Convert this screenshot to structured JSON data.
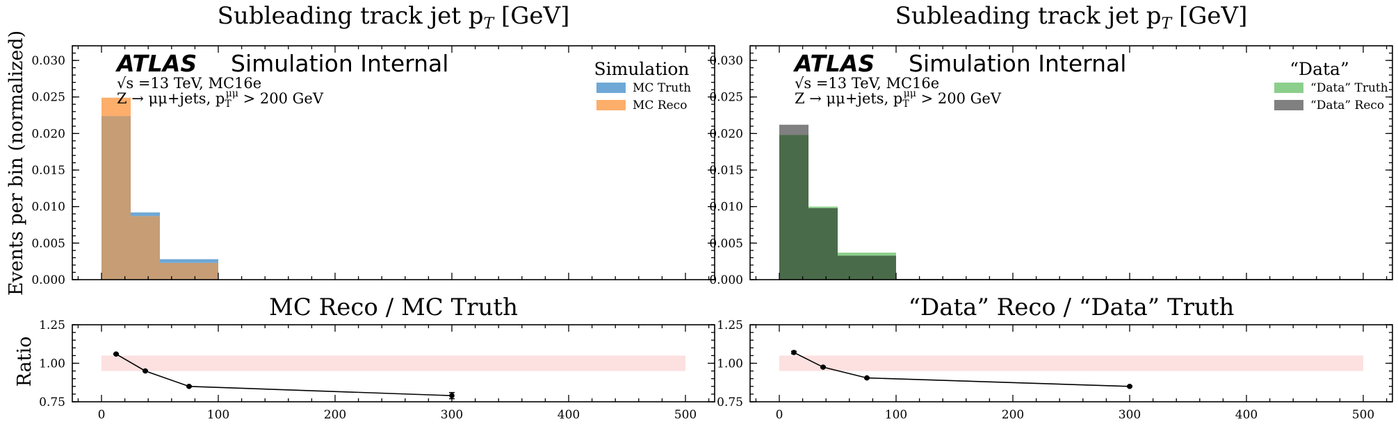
{
  "ylabel_main": "Events per bin (normalized)",
  "ylabel_ratio": "Ratio",
  "atlas": {
    "logo": "ATLAS",
    "label": "Simulation Internal",
    "energy": "√s =13 TeV, MC16e",
    "selection": "Z → μμ+jets, p",
    "selection_sup": "μμ",
    "selection_sub": "T",
    "selection_tail": " > 200 GeV"
  },
  "title_sub": "T",
  "title_unit": " [GeV]",
  "chart_data": [
    {
      "type": "histogram",
      "title": "Subleading track jet p",
      "legend_title": "Simulation",
      "legend_position": "top-right",
      "xlim": [
        -25,
        525
      ],
      "ylim": [
        0,
        0.032
      ],
      "yticks": [
        "0.000",
        "0.005",
        "0.010",
        "0.015",
        "0.020",
        "0.025",
        "0.030"
      ],
      "yticks_values": [
        0,
        0.005,
        0.01,
        0.015,
        0.02,
        0.025,
        0.03
      ],
      "bin_edges": [
        0,
        25,
        50,
        100,
        500
      ],
      "series": [
        {
          "name": "MC Truth",
          "color": "#6fa8d6",
          "values": [
            0.0224,
            0.0092,
            0.0028,
            0.0
          ]
        },
        {
          "name": "MC Reco",
          "color": "#fdae6b",
          "values": [
            0.0249,
            0.0087,
            0.0023,
            0.0
          ]
        }
      ],
      "overlap_color": "#c69d75"
    },
    {
      "type": "histogram",
      "title": "Subleading track jet p",
      "legend_title": "“Data”",
      "legend_position": "top-right",
      "xlim": [
        -25,
        525
      ],
      "ylim": [
        0,
        0.032
      ],
      "yticks": [
        "0.000",
        "0.005",
        "0.010",
        "0.015",
        "0.020",
        "0.025",
        "0.030"
      ],
      "yticks_values": [
        0,
        0.005,
        0.01,
        0.015,
        0.02,
        0.025,
        0.03
      ],
      "bin_edges": [
        0,
        25,
        50,
        100,
        500
      ],
      "series": [
        {
          "name": "“Data” Truth",
          "color": "#8ccf8c",
          "values": [
            0.0198,
            0.01,
            0.0037,
            0.0001
          ]
        },
        {
          "name": "“Data” Reco",
          "color": "#808080",
          "values": [
            0.0212,
            0.0098,
            0.0033,
            0.0001
          ]
        }
      ],
      "overlap_color": "#4a6b4a"
    },
    {
      "type": "line",
      "title": "MC Reco / MC Truth",
      "xlim": [
        -25,
        525
      ],
      "ylim": [
        0.75,
        1.25
      ],
      "xticks": [
        "0",
        "100",
        "200",
        "300",
        "400",
        "500"
      ],
      "xticks_values": [
        0,
        100,
        200,
        300,
        400,
        500
      ],
      "yticks": [
        "0.75",
        "1.00",
        "1.25"
      ],
      "yticks_values": [
        0.75,
        1.0,
        1.25
      ],
      "band": [
        0,
        500,
        0.95,
        1.05
      ],
      "band_color": "#fde0e0",
      "x": [
        12.5,
        37.5,
        75,
        300
      ],
      "y": [
        1.06,
        0.95,
        0.85,
        0.79
      ],
      "yerr": [
        0.004,
        0.004,
        0.004,
        0.02
      ]
    },
    {
      "type": "line",
      "title": "“Data” Reco / “Data” Truth",
      "xlim": [
        -25,
        525
      ],
      "ylim": [
        0.75,
        1.25
      ],
      "xticks": [
        "0",
        "100",
        "200",
        "300",
        "400",
        "500"
      ],
      "xticks_values": [
        0,
        100,
        200,
        300,
        400,
        500
      ],
      "yticks": [
        "0.75",
        "1.00",
        "1.25"
      ],
      "yticks_values": [
        0.75,
        1.0,
        1.25
      ],
      "band": [
        0,
        500,
        0.95,
        1.05
      ],
      "band_color": "#fde0e0",
      "x": [
        12.5,
        37.5,
        75,
        300
      ],
      "y": [
        1.07,
        0.975,
        0.905,
        0.85
      ],
      "yerr": [
        0.008,
        0.004,
        0.004,
        0.004
      ]
    }
  ]
}
